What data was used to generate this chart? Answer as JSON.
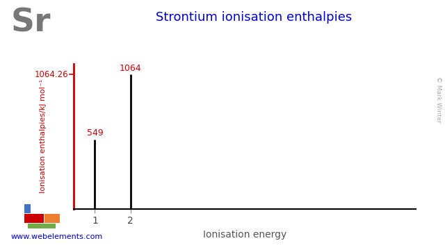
{
  "title": "Strontium ionisation enthalpies",
  "element_symbol": "Sr",
  "ionisation_numbers": [
    1,
    2
  ],
  "ionisation_values": [
    549,
    1064
  ],
  "ymax": 1150,
  "ytick_label": "1064.26",
  "ylabel": "Ionisation enthalpies/kJ mol⁻¹",
  "xlabel": "Ionisation energy",
  "title_color": "#0000cc",
  "ylabel_color": "#cc0000",
  "ytick_color": "#cc0000",
  "bar_value_colors": [
    "#cc0000",
    "#cc0000"
  ],
  "spine_left_color": "#cc0000",
  "spine_bottom_color": "#000000",
  "background_color": "#ffffff",
  "website": "www.webelements.com",
  "website_color": "#0000cc",
  "copyright": "© Mark Winter",
  "element_symbol_color": "#777777",
  "periodic_table_colors": {
    "blue_rect": "#4472c4",
    "red_rect": "#cc0000",
    "orange_rect": "#ed7d31",
    "green_rect": "#70ad47"
  }
}
